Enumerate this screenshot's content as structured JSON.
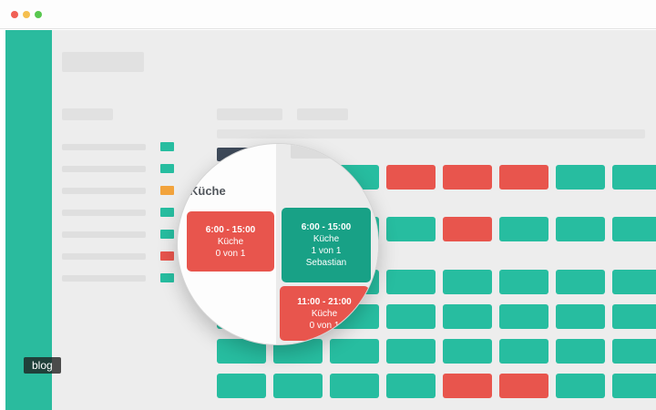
{
  "window": {
    "dot_names": [
      "close",
      "minimize",
      "zoom"
    ]
  },
  "colors": {
    "dot_red": "#f06055",
    "dot_yellow": "#f5bf4f",
    "dot_green": "#58c74f",
    "sidebar": "#2abb9e",
    "background": "#ededed",
    "header_cell": "#3e4a5a",
    "shift_teal": "#27bda0",
    "shift_red": "#e8554d",
    "legend_orange": "#f2a33c",
    "zoom_teal": "#18a186",
    "zoom_red": "#e8554d"
  },
  "legend_colors": [
    "shift_teal",
    "shift_teal",
    "legend_orange",
    "shift_teal",
    "shift_teal",
    "shift_red",
    "shift_teal"
  ],
  "schedule": {
    "rows": [
      {
        "cells": "tttrrrtt"
      },
      {
        "cells": "ttttrttt"
      },
      {
        "cells": "tttttttt"
      },
      {
        "cells": "tttttttt"
      },
      {
        "cells": "tttttttt"
      },
      {
        "cells": "ttttrrtt"
      }
    ]
  },
  "magnifier": {
    "section_label": "Küche",
    "cells": [
      {
        "type": "open",
        "time": "6:00 - 15:00",
        "department": "Küche",
        "slots": "0 von 1"
      },
      {
        "type": "filled",
        "time": "6:00 - 15:00",
        "department": "Küche",
        "slots": "1 von 1",
        "employee": "Sebastian"
      },
      {
        "type": "open",
        "time": "11:00 - 21:00",
        "department": "Küche",
        "slots": "0 von 1"
      }
    ]
  },
  "watermark": "blog"
}
